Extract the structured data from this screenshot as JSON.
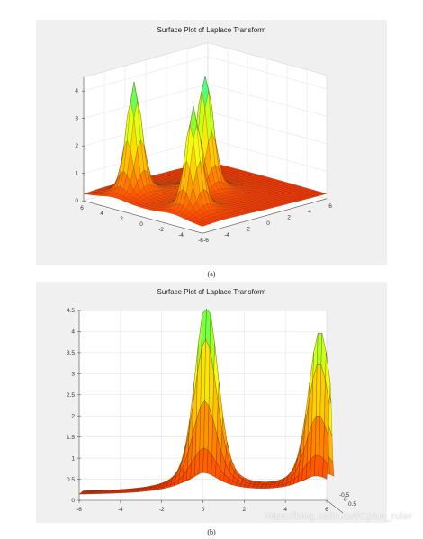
{
  "chart_data": [
    {
      "type": "surface",
      "title": "Surface Plot of Laplace Transform",
      "caption": "(a)",
      "view": "3d-oblique",
      "grid": true,
      "xlim": [
        -6,
        6
      ],
      "ylim": [
        -6,
        6
      ],
      "zlim": [
        0,
        4.5
      ],
      "x_ticks": [
        "-6",
        "-4",
        "-2",
        "0",
        "2",
        "4",
        "6"
      ],
      "y_ticks": [
        "-6",
        "-4",
        "-2",
        "0",
        "2",
        "4",
        "6"
      ],
      "z_ticks": [
        "0",
        "1",
        "2",
        "3",
        "4"
      ],
      "peaks": [
        {
          "x": 0,
          "y": 0,
          "z": 4.5
        },
        {
          "x": 4,
          "y": 3,
          "z": 3.9
        },
        {
          "x": 4,
          "y": -3,
          "z": 4.2
        }
      ],
      "colormap": [
        "#ff2000",
        "#ff7a00",
        "#ffc800",
        "#f4ff10",
        "#80ff30",
        "#10ffe0"
      ]
    },
    {
      "type": "surface",
      "title": "Surface Plot of Laplace Transform",
      "caption": "(b)",
      "view": "side",
      "grid": true,
      "xlim": [
        -6,
        6
      ],
      "ylim": [
        -0.5,
        0.5
      ],
      "zlim": [
        0,
        4.5
      ],
      "x_ticks": [
        "-6",
        "-4",
        "-2",
        "0",
        "2",
        "4",
        "6"
      ],
      "y_ticks": [
        "-0.5",
        "0",
        "0.5"
      ],
      "z_ticks": [
        "0",
        "0.5",
        "1",
        "1.5",
        "2",
        "2.5",
        "3",
        "3.5",
        "4",
        "4.5"
      ],
      "peaks": [
        {
          "x": 0,
          "z": 4.5
        },
        {
          "x": 5.5,
          "z": 3.8
        }
      ],
      "colormap": [
        "#ff2000",
        "#ff7a00",
        "#ffc800",
        "#f4ff10",
        "#80ff30",
        "#10ffe0"
      ]
    }
  ],
  "watermark": "https://blog.csdn.net/Cplus_ruler"
}
